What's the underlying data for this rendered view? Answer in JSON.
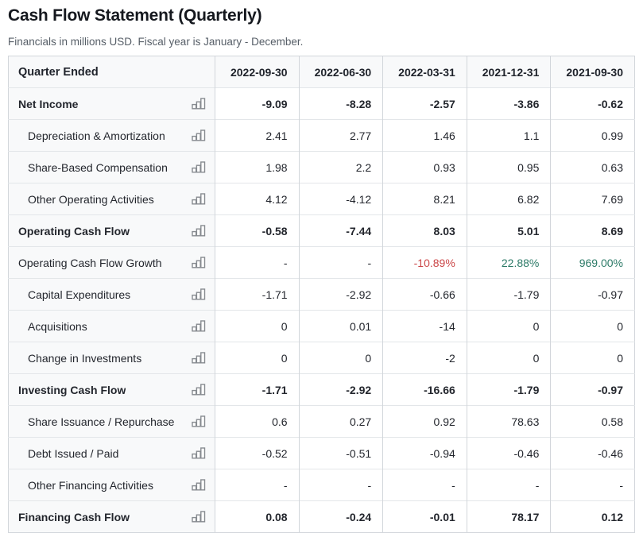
{
  "page": {
    "title": "Cash Flow Statement (Quarterly)",
    "subtitle": "Financials in millions USD. Fiscal year is January - December."
  },
  "table": {
    "header": {
      "label": "Quarter Ended",
      "columns": [
        "2022-09-30",
        "2022-06-30",
        "2022-03-31",
        "2021-12-31",
        "2021-09-30"
      ]
    },
    "colors": {
      "positive": "#2c7a67",
      "negative": "#cb4748",
      "header_bg": "#f8f9fa",
      "border": "#d2d6db",
      "icon_gray": "#878b90"
    },
    "row_icon": "bar-chart-icon",
    "rows": [
      {
        "label": "Net Income",
        "style": "total",
        "indent": false,
        "values": [
          "-9.09",
          "-8.28",
          "-2.57",
          "-3.86",
          "-0.62"
        ]
      },
      {
        "label": "Depreciation & Amortization",
        "style": "normal",
        "indent": true,
        "values": [
          "2.41",
          "2.77",
          "1.46",
          "1.1",
          "0.99"
        ]
      },
      {
        "label": "Share-Based Compensation",
        "style": "normal",
        "indent": true,
        "values": [
          "1.98",
          "2.2",
          "0.93",
          "0.95",
          "0.63"
        ]
      },
      {
        "label": "Other Operating Activities",
        "style": "normal",
        "indent": true,
        "values": [
          "4.12",
          "-4.12",
          "8.21",
          "6.82",
          "7.69"
        ]
      },
      {
        "label": "Operating Cash Flow",
        "style": "total",
        "indent": false,
        "values": [
          "-0.58",
          "-7.44",
          "8.03",
          "5.01",
          "8.69"
        ]
      },
      {
        "label": "Operating Cash Flow Growth",
        "style": "normal",
        "indent": false,
        "values": [
          "-",
          "-",
          "-10.89%",
          "22.88%",
          "969.00%"
        ],
        "value_colors": [
          "",
          "",
          "negative",
          "positive",
          "positive"
        ]
      },
      {
        "label": "Capital Expenditures",
        "style": "normal",
        "indent": true,
        "values": [
          "-1.71",
          "-2.92",
          "-0.66",
          "-1.79",
          "-0.97"
        ]
      },
      {
        "label": "Acquisitions",
        "style": "normal",
        "indent": true,
        "values": [
          "0",
          "0.01",
          "-14",
          "0",
          "0"
        ]
      },
      {
        "label": "Change in Investments",
        "style": "normal",
        "indent": true,
        "values": [
          "0",
          "0",
          "-2",
          "0",
          "0"
        ]
      },
      {
        "label": "Investing Cash Flow",
        "style": "total",
        "indent": false,
        "values": [
          "-1.71",
          "-2.92",
          "-16.66",
          "-1.79",
          "-0.97"
        ]
      },
      {
        "label": "Share Issuance / Repurchase",
        "style": "normal",
        "indent": true,
        "values": [
          "0.6",
          "0.27",
          "0.92",
          "78.63",
          "0.58"
        ]
      },
      {
        "label": "Debt Issued / Paid",
        "style": "normal",
        "indent": true,
        "values": [
          "-0.52",
          "-0.51",
          "-0.94",
          "-0.46",
          "-0.46"
        ]
      },
      {
        "label": "Other Financing Activities",
        "style": "normal",
        "indent": true,
        "values": [
          "-",
          "-",
          "-",
          "-",
          "-"
        ]
      },
      {
        "label": "Financing Cash Flow",
        "style": "total",
        "indent": false,
        "values": [
          "0.08",
          "-0.24",
          "-0.01",
          "78.17",
          "0.12"
        ]
      }
    ]
  }
}
